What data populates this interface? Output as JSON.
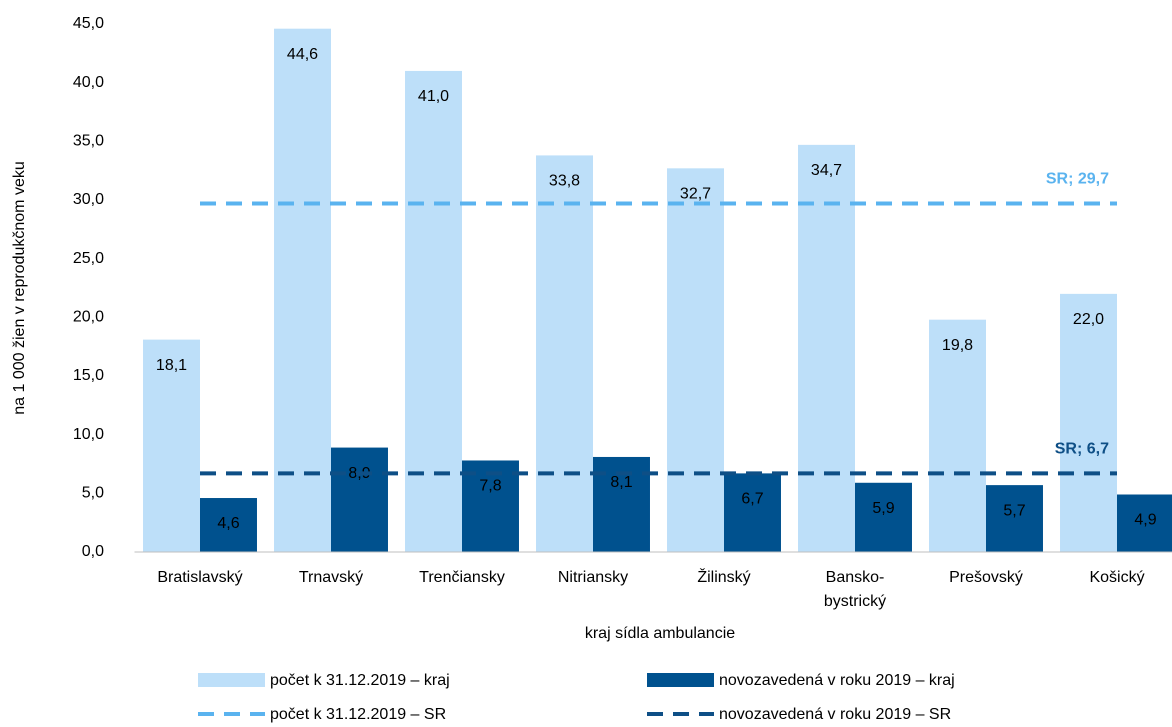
{
  "chart_data": {
    "type": "bar",
    "x_label": "kraj sídla ambulancie",
    "y_label": "na 1 000 žien v reprodukčnom veku",
    "categories": [
      "Bratislavský",
      "Trnavský",
      "Trenčiansky",
      "Nitriansky",
      "Žilinský",
      "Bansko-\nbystrický",
      "Prešovský",
      "Košický"
    ],
    "series": [
      {
        "name": "počet k 31.12.2019 – kraj",
        "color": "#bddff9",
        "values": [
          18.1,
          44.6,
          41.0,
          33.8,
          32.7,
          34.7,
          19.8,
          22.0
        ],
        "value_labels": [
          "18,1",
          "44,6",
          "41,0",
          "33,8",
          "32,7",
          "34,7",
          "19,8",
          "22,0"
        ]
      },
      {
        "name": "novozavedená v roku 2019 – kraj",
        "color": "#00518e",
        "values": [
          4.6,
          8.9,
          7.8,
          8.1,
          6.7,
          5.9,
          5.7,
          4.9
        ],
        "value_labels": [
          "4,6",
          "8,9",
          "7,8",
          "8,1",
          "6,7",
          "5,9",
          "5,7",
          "4,9"
        ]
      }
    ],
    "reference_lines": [
      {
        "name": "počet k 31.12.2019 – SR",
        "color": "#5ab3ef",
        "value": 29.7,
        "label": "SR; 29,7"
      },
      {
        "name": "novozavedená v roku 2019 – SR",
        "color": "#0e4f86",
        "value": 6.7,
        "label": "SR; 6,7"
      }
    ],
    "ylim": [
      0,
      45
    ],
    "yticks": [
      {
        "value": 0,
        "label": "0,0"
      },
      {
        "value": 5,
        "label": "5,0"
      },
      {
        "value": 10,
        "label": "10,0"
      },
      {
        "value": 15,
        "label": "15,0"
      },
      {
        "value": 20,
        "label": "20,0"
      },
      {
        "value": 25,
        "label": "25,0"
      },
      {
        "value": 30,
        "label": "30,0"
      },
      {
        "value": 35,
        "label": "35,0"
      },
      {
        "value": 40,
        "label": "40,0"
      },
      {
        "value": 45,
        "label": "45,0"
      }
    ],
    "grid": false
  }
}
